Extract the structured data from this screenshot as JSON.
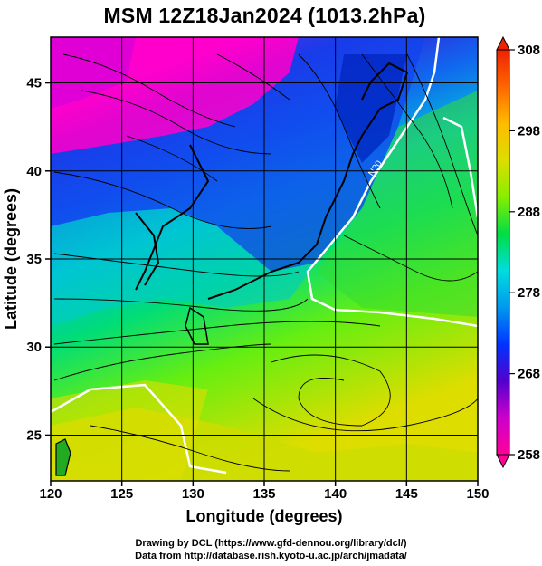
{
  "title": "MSM 12Z18Jan2024 (1013.2hPa)",
  "chart_data": {
    "type": "map",
    "field": "temperature with streamlines",
    "level": "1013.2hPa",
    "xlabel": "Longitude (degrees)",
    "ylabel": "Latitude  (degrees)",
    "xlim": [
      120,
      150
    ],
    "ylim": [
      22.4,
      47.6
    ],
    "x_ticks": [
      120,
      125,
      130,
      135,
      140,
      145,
      150
    ],
    "y_ticks": [
      25,
      30,
      35,
      40,
      45
    ],
    "colorbar": {
      "min": 258,
      "max": 308,
      "ticks": [
        258,
        268,
        278,
        288,
        298,
        308
      ],
      "colors": [
        "#ff0099",
        "#cc00cc",
        "#5500cc",
        "#0033ff",
        "#0099ee",
        "#00dddd",
        "#00dd44",
        "#88ee00",
        "#dddd00",
        "#ffbb00",
        "#ff6600",
        "#ee2200"
      ]
    },
    "contour_label": "N20",
    "grid": true
  },
  "footer": {
    "line1": "Drawing by DCL (https://www.gfd-dennou.org/library/dcl/)",
    "line2": "Data from http://database.rish.kyoto-u.ac.jp/arch/jmadata/"
  }
}
